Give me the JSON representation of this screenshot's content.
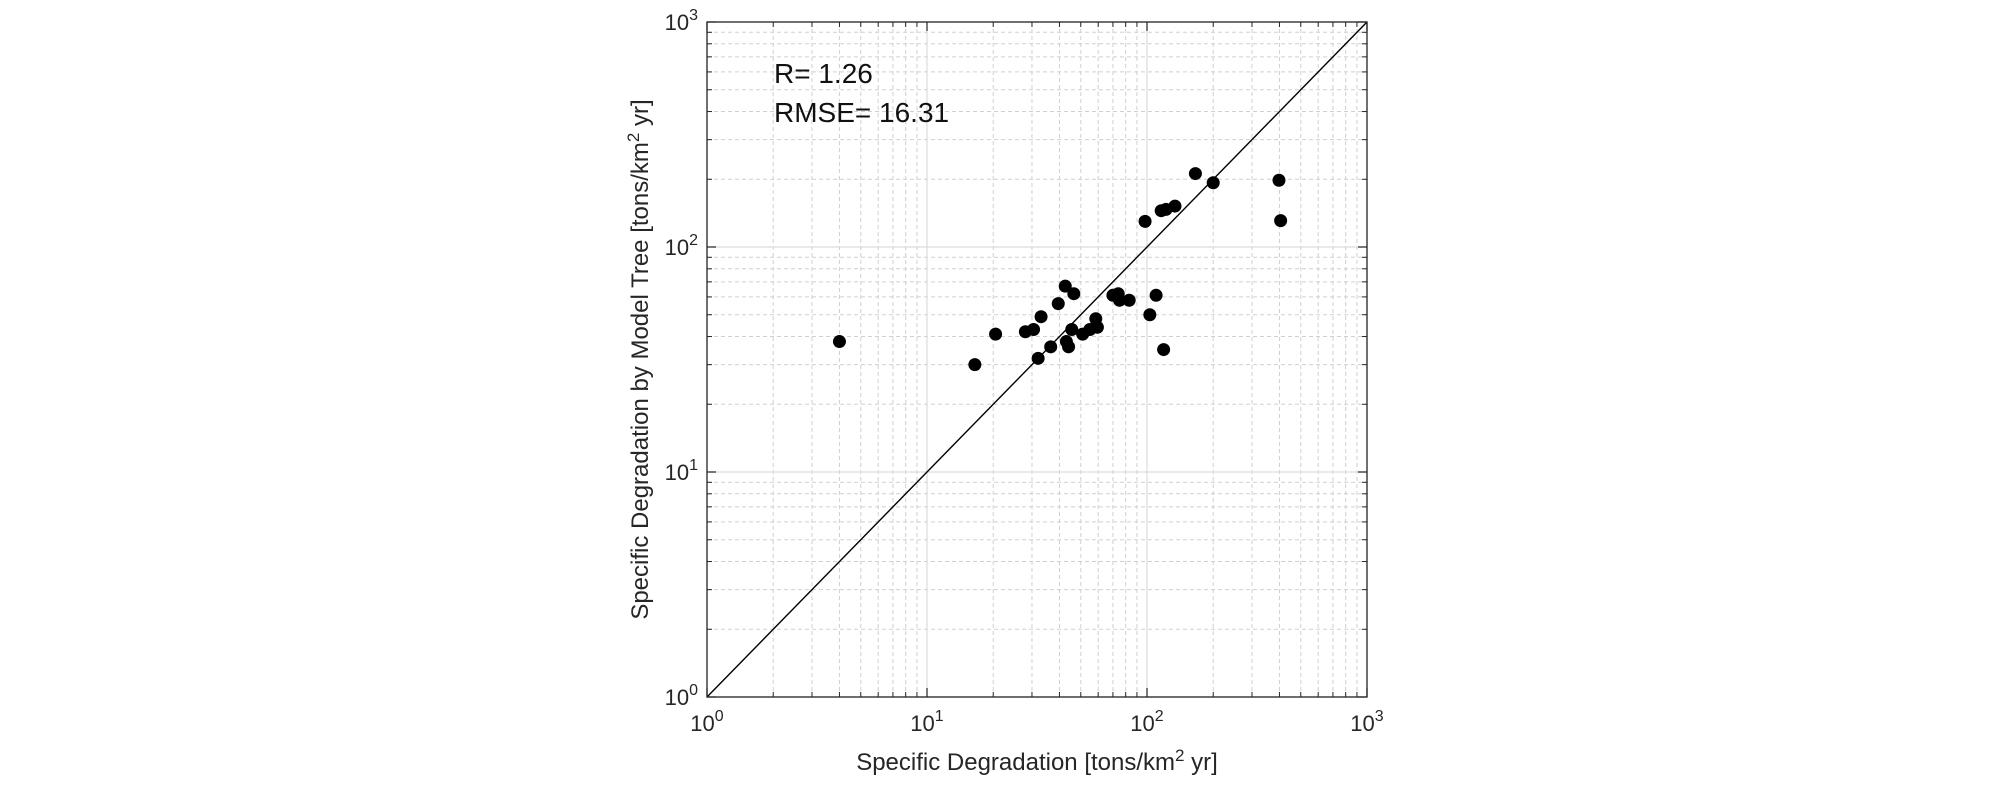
{
  "chart_data": {
    "type": "scatter",
    "title": "",
    "xlabel": {
      "prefix": "Specific Degradation [tons/km",
      "sup": "2",
      "suffix": " yr]"
    },
    "ylabel": {
      "prefix": "Specific Degradation by Model Tree [tons/km",
      "sup": "2",
      "suffix": " yr]"
    },
    "xscale": "log",
    "yscale": "log",
    "xlim": [
      1,
      1000
    ],
    "ylim": [
      1,
      1000
    ],
    "xticks": [
      {
        "base": "10",
        "exp": "0",
        "value": 1
      },
      {
        "base": "10",
        "exp": "1",
        "value": 10
      },
      {
        "base": "10",
        "exp": "2",
        "value": 100
      },
      {
        "base": "10",
        "exp": "3",
        "value": 1000
      }
    ],
    "yticks": [
      {
        "base": "10",
        "exp": "0",
        "value": 1
      },
      {
        "base": "10",
        "exp": "1",
        "value": 10
      },
      {
        "base": "10",
        "exp": "2",
        "value": 100
      },
      {
        "base": "10",
        "exp": "3",
        "value": 1000
      }
    ],
    "grid": true,
    "reference_line": "1:1",
    "annotations": [
      "R= 1.26",
      "RMSE= 16.31"
    ],
    "marker_color": "#000000",
    "points": [
      {
        "x": 4.0,
        "y": 38
      },
      {
        "x": 16.5,
        "y": 30
      },
      {
        "x": 20.5,
        "y": 41
      },
      {
        "x": 28,
        "y": 42
      },
      {
        "x": 30.5,
        "y": 43
      },
      {
        "x": 32,
        "y": 32
      },
      {
        "x": 33,
        "y": 49
      },
      {
        "x": 36.5,
        "y": 36
      },
      {
        "x": 39.5,
        "y": 56
      },
      {
        "x": 42.5,
        "y": 67
      },
      {
        "x": 43,
        "y": 38
      },
      {
        "x": 44,
        "y": 36
      },
      {
        "x": 45.5,
        "y": 43
      },
      {
        "x": 46.5,
        "y": 62
      },
      {
        "x": 51,
        "y": 41
      },
      {
        "x": 55,
        "y": 43
      },
      {
        "x": 58.5,
        "y": 48
      },
      {
        "x": 59.5,
        "y": 44
      },
      {
        "x": 70,
        "y": 61
      },
      {
        "x": 74,
        "y": 62
      },
      {
        "x": 75,
        "y": 58
      },
      {
        "x": 83,
        "y": 58
      },
      {
        "x": 98,
        "y": 130
      },
      {
        "x": 103,
        "y": 50
      },
      {
        "x": 110,
        "y": 61
      },
      {
        "x": 116,
        "y": 145
      },
      {
        "x": 119,
        "y": 35
      },
      {
        "x": 122,
        "y": 147
      },
      {
        "x": 134,
        "y": 152
      },
      {
        "x": 166,
        "y": 212
      },
      {
        "x": 200,
        "y": 193
      },
      {
        "x": 398,
        "y": 198
      },
      {
        "x": 405,
        "y": 131
      }
    ]
  }
}
